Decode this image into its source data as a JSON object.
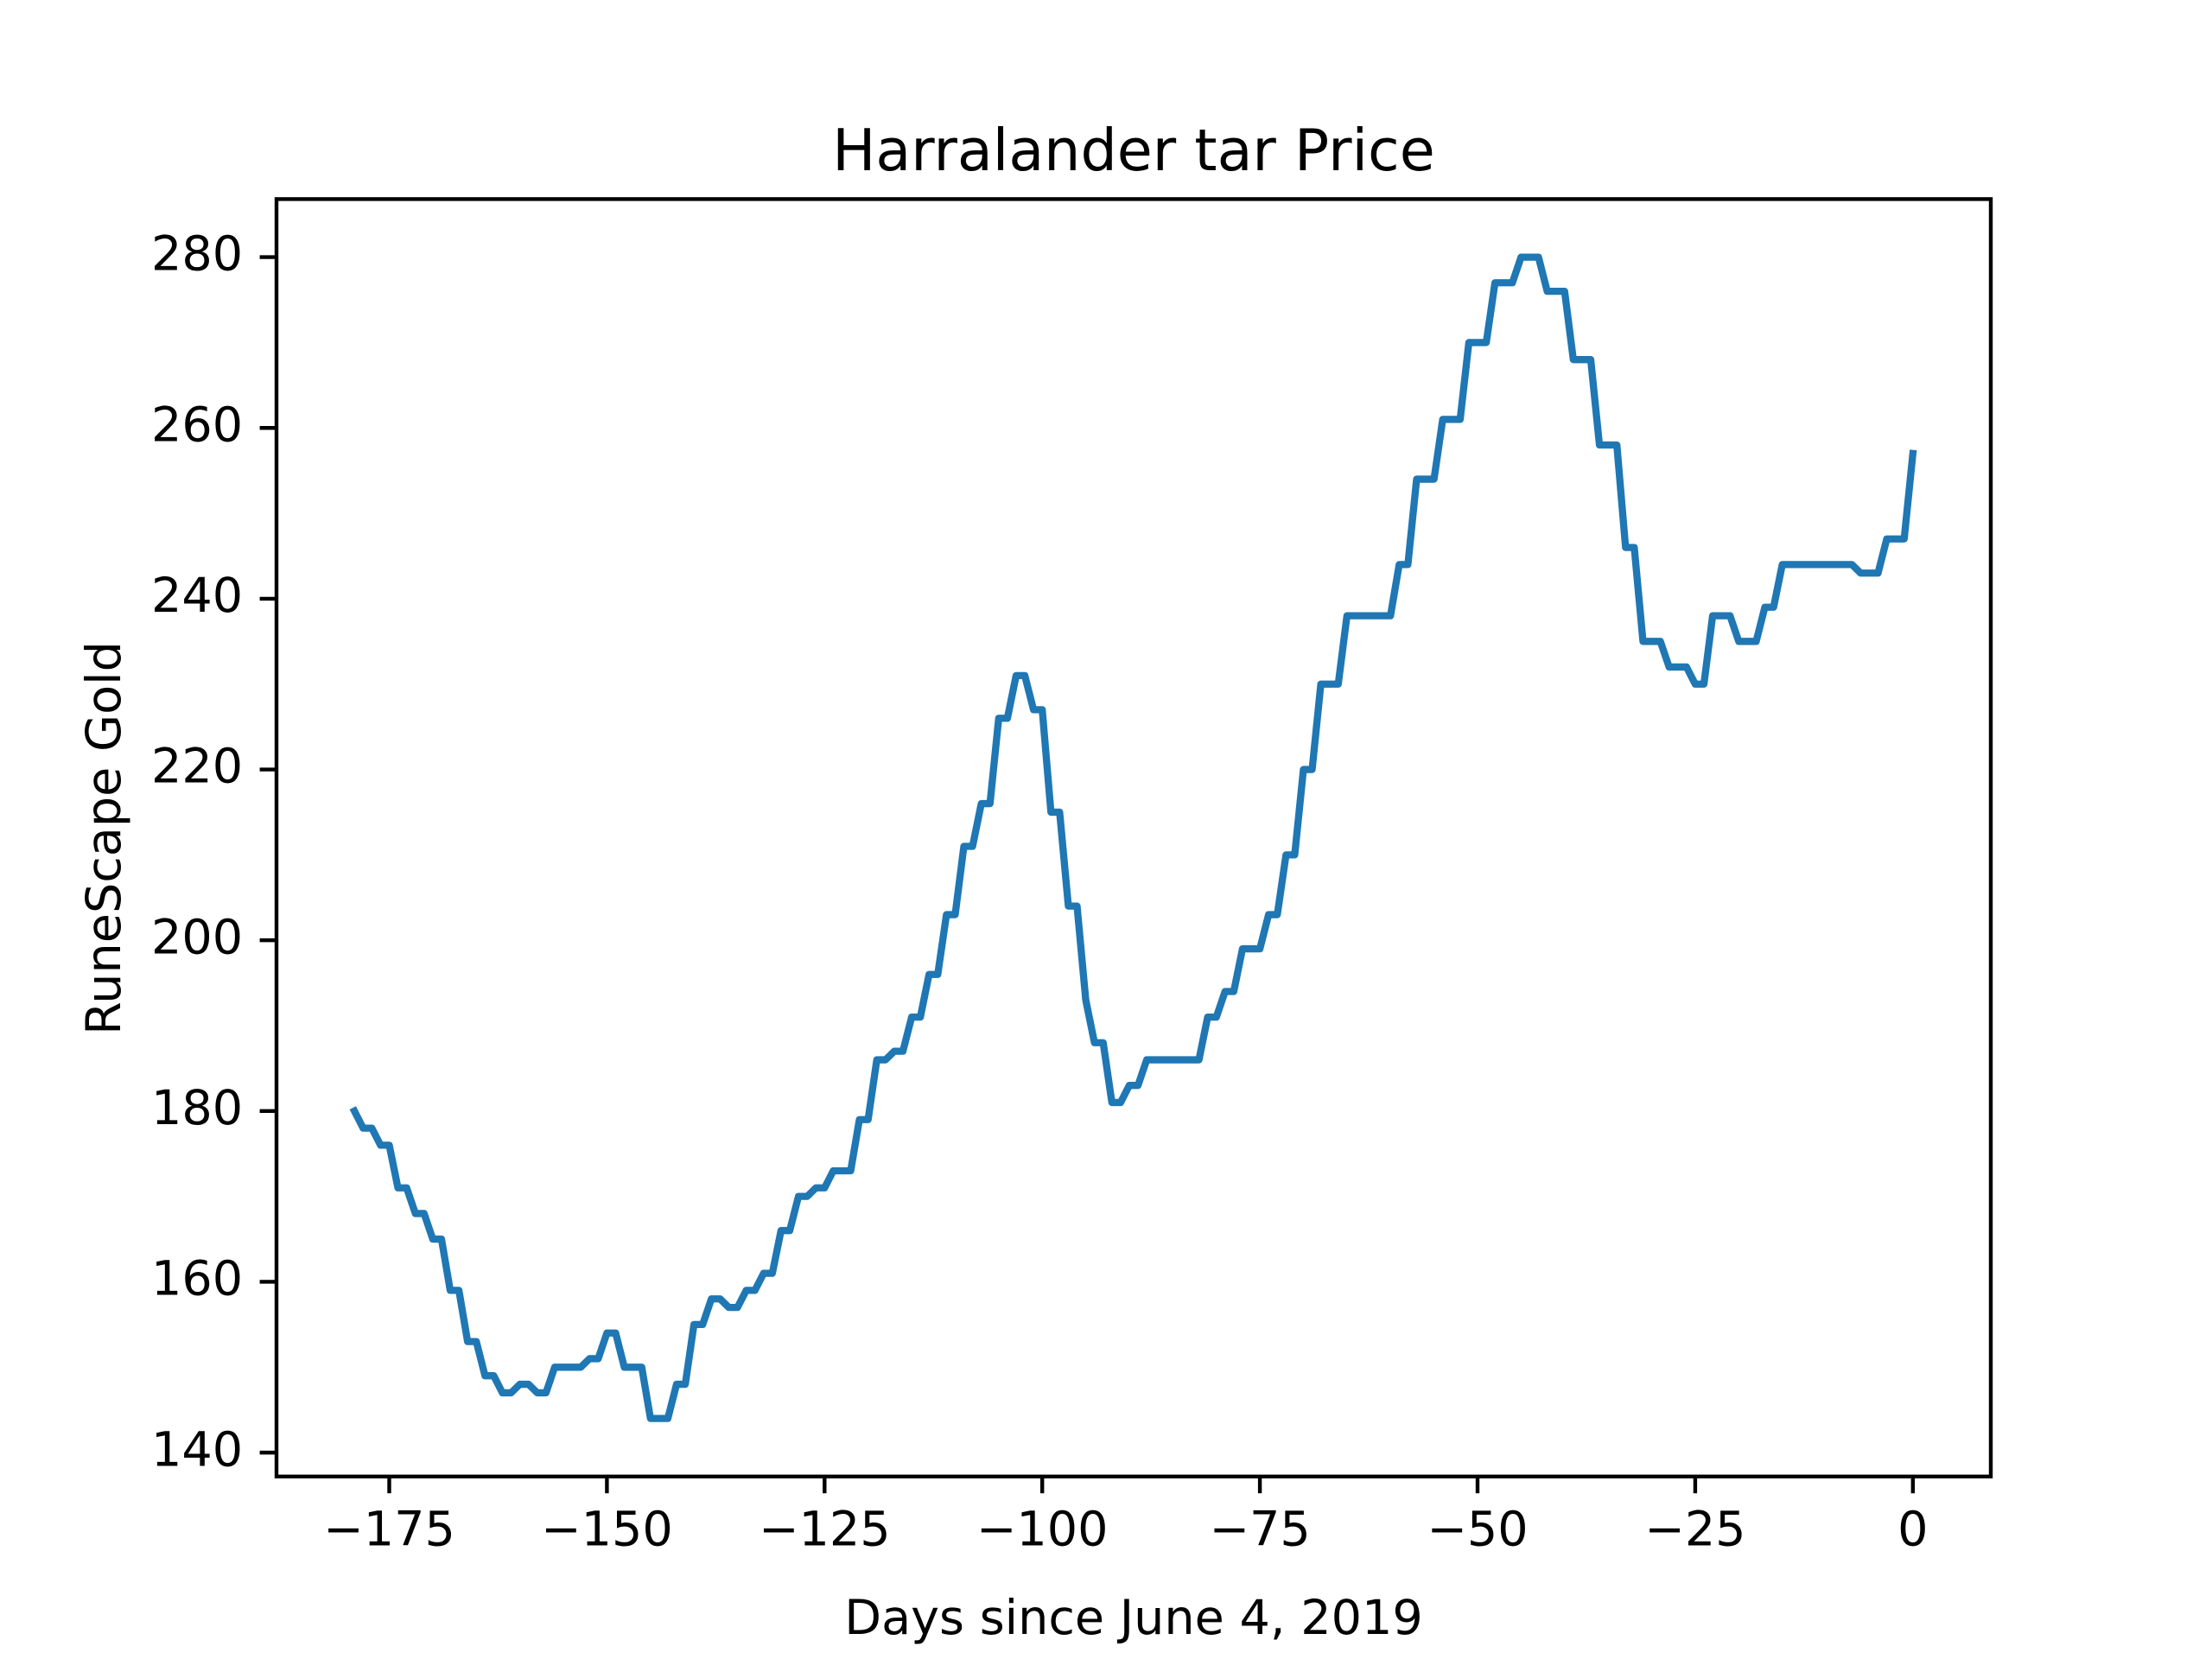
{
  "chart_data": {
    "type": "line",
    "title": "Harralander tar Price",
    "x_label": "Days since June 4, 2019",
    "y_label": "RuneScape Gold",
    "color": "#1f77b4",
    "x": [
      -179,
      -178,
      -177,
      -176,
      -175,
      -174,
      -173,
      -172,
      -171,
      -170,
      -169,
      -168,
      -167,
      -166,
      -165,
      -164,
      -163,
      -162,
      -161,
      -160,
      -159,
      -158,
      -157,
      -156,
      -155,
      -154,
      -153,
      -152,
      -151,
      -150,
      -149,
      -148,
      -147,
      -146,
      -145,
      -144,
      -143,
      -142,
      -141,
      -140,
      -139,
      -138,
      -137,
      -136,
      -135,
      -134,
      -133,
      -132,
      -131,
      -130,
      -129,
      -128,
      -127,
      -126,
      -125,
      -124,
      -123,
      -122,
      -121,
      -120,
      -119,
      -118,
      -117,
      -116,
      -115,
      -114,
      -113,
      -112,
      -111,
      -110,
      -109,
      -108,
      -107,
      -106,
      -105,
      -104,
      -103,
      -102,
      -101,
      -100,
      -99,
      -98,
      -97,
      -96,
      -95,
      -94,
      -93,
      -92,
      -91,
      -90,
      -89,
      -88,
      -87,
      -86,
      -85,
      -84,
      -83,
      -82,
      -81,
      -80,
      -79,
      -78,
      -77,
      -76,
      -75,
      -74,
      -73,
      -72,
      -71,
      -70,
      -69,
      -68,
      -67,
      -66,
      -65,
      -64,
      -63,
      -62,
      -61,
      -60,
      -59,
      -58,
      -57,
      -56,
      -55,
      -54,
      -53,
      -52,
      -51,
      -50,
      -49,
      -48,
      -47,
      -46,
      -45,
      -44,
      -43,
      -42,
      -41,
      -40,
      -39,
      -38,
      -37,
      -36,
      -35,
      -34,
      -33,
      -32,
      -31,
      -30,
      -29,
      -28,
      -27,
      -26,
      -25,
      -24,
      -23,
      -22,
      -21,
      -20,
      -19,
      -18,
      -17,
      -16,
      -15,
      -14,
      -13,
      -12,
      -11,
      -10,
      -9,
      -8,
      -7,
      -6,
      -5,
      -4,
      -3,
      -2,
      -1,
      0
    ],
    "values": [
      180,
      178,
      178,
      176,
      176,
      171,
      171,
      168,
      168,
      165,
      165,
      159,
      159,
      153,
      153,
      149,
      149,
      147,
      147,
      148,
      148,
      147,
      147,
      150,
      150,
      150,
      150,
      151,
      151,
      154,
      154,
      150,
      150,
      150,
      144,
      144,
      144,
      148,
      148,
      155,
      155,
      158,
      158,
      157,
      157,
      159,
      159,
      161,
      161,
      166,
      166,
      170,
      170,
      171,
      171,
      173,
      173,
      173,
      179,
      179,
      186,
      186,
      187,
      187,
      191,
      191,
      196,
      196,
      203,
      203,
      211,
      211,
      216,
      216,
      226,
      226,
      231,
      231,
      227,
      227,
      215,
      215,
      204,
      204,
      193,
      188,
      188,
      181,
      181,
      183,
      183,
      186,
      186,
      186,
      186,
      186,
      186,
      186,
      191,
      191,
      194,
      194,
      199,
      199,
      199,
      203,
      203,
      210,
      210,
      220,
      220,
      230,
      230,
      230,
      238,
      238,
      238,
      238,
      238,
      238,
      244,
      244,
      254,
      254,
      254,
      261,
      261,
      261,
      270,
      270,
      270,
      277,
      277,
      277,
      280,
      280,
      280,
      276,
      276,
      276,
      268,
      268,
      268,
      258,
      258,
      258,
      246,
      246,
      235,
      235,
      235,
      232,
      232,
      232,
      230,
      230,
      238,
      238,
      238,
      235,
      235,
      235,
      239,
      239,
      244,
      244,
      244,
      244,
      244,
      244,
      244,
      244,
      244,
      243,
      243,
      243,
      247,
      247,
      247,
      257
    ],
    "xlim": [
      -187.95,
      8.95
    ],
    "ylim": [
      137.2,
      286.8
    ],
    "xticks": [
      {
        "value": -175,
        "label": "−175"
      },
      {
        "value": -150,
        "label": "−150"
      },
      {
        "value": -125,
        "label": "−125"
      },
      {
        "value": -100,
        "label": "−100"
      },
      {
        "value": -75,
        "label": "−75"
      },
      {
        "value": -50,
        "label": "−50"
      },
      {
        "value": -25,
        "label": "−25"
      },
      0
    ],
    "yticks": [
      140,
      160,
      180,
      200,
      220,
      240,
      260,
      280
    ],
    "grid": false
  }
}
